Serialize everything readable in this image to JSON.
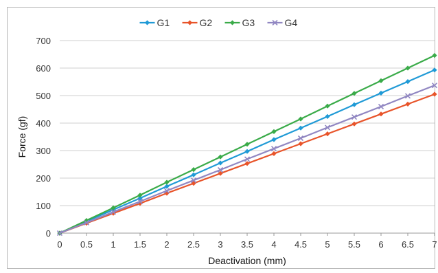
{
  "chart_data": {
    "type": "line",
    "xlabel": "Deactivation (mm)",
    "ylabel": "Force (gf)",
    "xlim": [
      0,
      7
    ],
    "ylim": [
      0,
      700
    ],
    "x_ticks": [
      "0",
      "0.5",
      "1",
      "1.5",
      "2",
      "2.5",
      "3",
      "3.5",
      "4",
      "4.5",
      "5",
      "5.5",
      "6",
      "6.5",
      "7"
    ],
    "y_ticks": [
      "0",
      "100",
      "200",
      "300",
      "400",
      "500",
      "600",
      "700"
    ],
    "grid": "horizontal",
    "legend_position": "top-center",
    "x": [
      0,
      0.5,
      1,
      1.5,
      2,
      2.5,
      3,
      3.5,
      4,
      4.5,
      5,
      5.5,
      6,
      6.5,
      7
    ],
    "series": [
      {
        "name": "G1",
        "color": "#1f9ad6",
        "marker": "diamond",
        "values": [
          0,
          43,
          85,
          127,
          170,
          212,
          255,
          297,
          340,
          382,
          424,
          467,
          509,
          551,
          593
        ]
      },
      {
        "name": "G2",
        "color": "#e8542a",
        "marker": "diamond",
        "values": [
          0,
          36,
          72,
          108,
          145,
          181,
          217,
          253,
          289,
          325,
          361,
          397,
          433,
          469,
          505
        ]
      },
      {
        "name": "G3",
        "color": "#3aab49",
        "marker": "diamond",
        "values": [
          0,
          46,
          92,
          138,
          185,
          231,
          277,
          323,
          369,
          415,
          462,
          508,
          554,
          600,
          646
        ]
      },
      {
        "name": "G4",
        "color": "#9187c2",
        "marker": "x",
        "values": [
          0,
          38,
          77,
          115,
          154,
          192,
          230,
          269,
          307,
          345,
          384,
          422,
          460,
          499,
          537
        ]
      }
    ]
  }
}
